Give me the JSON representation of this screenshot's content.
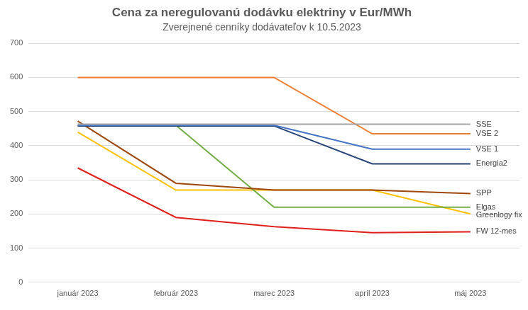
{
  "chart_data": {
    "type": "line",
    "title": "Cena za neregulovanú dodávku elektriny v Eur/MWh",
    "subtitle": "Zverejnené cenníky dodávateľov k 10.5.2023",
    "categories": [
      "január 2023",
      "február 2023",
      "marec 2023",
      "apríl 2023",
      "máj 2023"
    ],
    "series": [
      {
        "name": "SSE",
        "color": "#a5a5a5",
        "values": [
          463,
          463,
          463,
          463,
          463
        ]
      },
      {
        "name": "VSE 2",
        "color": "#ed7d31",
        "values": [
          600,
          600,
          600,
          435,
          435
        ]
      },
      {
        "name": "VSE 1",
        "color": "#4472c4",
        "values": [
          460,
          460,
          460,
          390,
          390
        ]
      },
      {
        "name": "Energia2",
        "color": "#264478",
        "values": [
          458,
          458,
          458,
          347,
          347
        ]
      },
      {
        "name": "SPP",
        "color": "#9e480e",
        "values": [
          472,
          290,
          270,
          270,
          260
        ]
      },
      {
        "name": "Elgas",
        "color": "#70ad47",
        "values": [
          460,
          460,
          220,
          220,
          220
        ]
      },
      {
        "name": "Greenlogy fix",
        "color": "#ffc000",
        "values": [
          440,
          270,
          270,
          270,
          200
        ]
      },
      {
        "name": "FW 12-mes",
        "color": "#e0201b",
        "values": [
          335,
          190,
          163,
          145,
          148
        ]
      }
    ],
    "ylim": [
      0,
      700
    ],
    "yticks": [
      0,
      100,
      200,
      300,
      400,
      500,
      600,
      700
    ],
    "grid": true
  }
}
